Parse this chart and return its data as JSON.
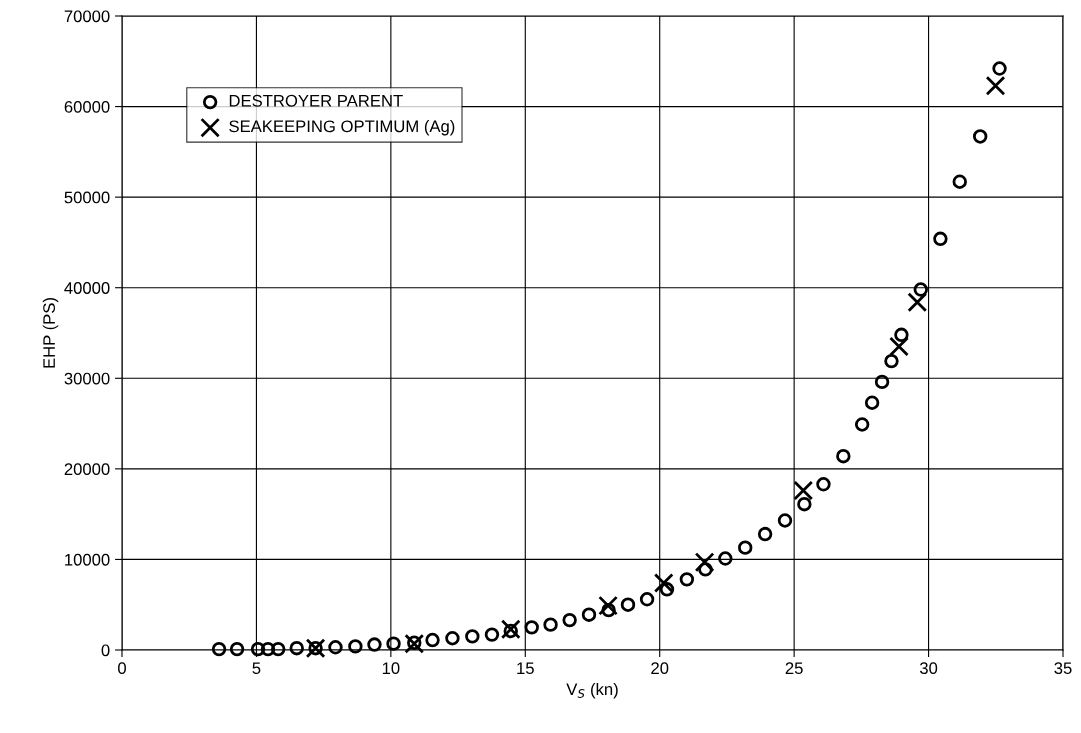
{
  "chart_data": {
    "type": "scatter",
    "xlabel": "V$_{S}$ (kn)",
    "ylabel": "EHP (PS)",
    "xlim": [
      0,
      35
    ],
    "xticks": [
      0,
      5,
      10,
      15,
      20,
      25,
      30,
      35
    ],
    "ylim": [
      0,
      70000
    ],
    "yticks": [
      0,
      10000,
      20000,
      30000,
      40000,
      50000,
      60000,
      70000
    ],
    "grid": true,
    "legend": "top left",
    "series": [
      {
        "name": "DESTROYER PARENT",
        "color": "#000000",
        "marker": "circle",
        "x": [
          3.61,
          4.28,
          5.06,
          5.43,
          5.81,
          6.5,
          7.2,
          7.94,
          8.68,
          9.39,
          10.1,
          10.87,
          11.55,
          12.29,
          13.03,
          13.76,
          14.46,
          15.24,
          15.94,
          16.65,
          17.37,
          18.1,
          18.82,
          19.53,
          20.27,
          21.01,
          21.7,
          22.44,
          23.18,
          23.92,
          24.66,
          25.38,
          26.09,
          26.83,
          27.53,
          27.9,
          28.27,
          28.62,
          28.99,
          29.71,
          30.44,
          31.16,
          31.92,
          32.64
        ],
        "values": [
          100,
          100,
          100,
          100,
          100,
          200,
          200,
          300,
          400,
          600,
          700,
          800,
          1100,
          1300,
          1500,
          1700,
          2100,
          2500,
          2800,
          3300,
          3900,
          4400,
          5000,
          5600,
          6700,
          7800,
          8900,
          10100,
          11300,
          12800,
          14300,
          16100,
          18300,
          21400,
          24900,
          27300,
          29600,
          31900,
          34800,
          39800,
          45400,
          51700,
          56700,
          64200
        ]
      },
      {
        "name": "SEAKEEPING OPTIMUM (Ag)",
        "color": "#000000",
        "marker": "cross",
        "x": [
          7.2,
          10.87,
          14.46,
          18.08,
          20.15,
          21.67,
          25.34,
          28.9,
          29.58,
          32.49
        ],
        "values": [
          200,
          700,
          2300,
          4900,
          7400,
          9700,
          17600,
          33500,
          38400,
          62300
        ]
      }
    ]
  }
}
